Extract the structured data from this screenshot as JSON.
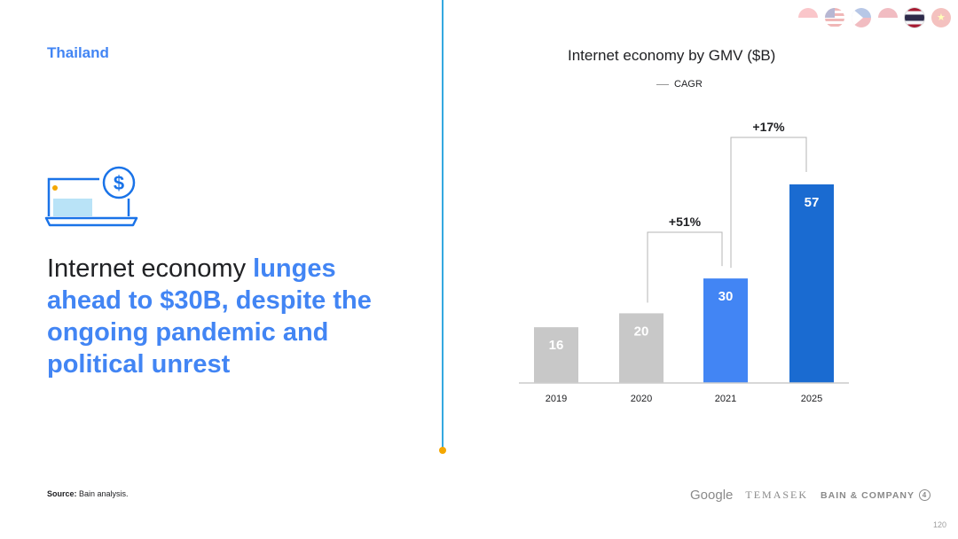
{
  "slide": {
    "country": "Thailand",
    "headline_plain": "Internet economy ",
    "headline_emph": "lunges ahead to $30B, despite the ongoing pandemic and political unrest",
    "source_label": "Source:",
    "source_text": "Bain analysis.",
    "page_number": "120",
    "icon": "laptop-dollar-icon"
  },
  "logos": {
    "google": "Google",
    "temasek": "TEMASEK",
    "bain": "BAIN & COMPANY"
  },
  "flags": [
    {
      "name": "singapore",
      "active": false
    },
    {
      "name": "malaysia",
      "active": false
    },
    {
      "name": "philippines",
      "active": false
    },
    {
      "name": "indonesia",
      "active": false
    },
    {
      "name": "thailand",
      "active": true
    },
    {
      "name": "vietnam",
      "active": false
    }
  ],
  "colors": {
    "accent": "#4285f4",
    "bar_gray": "#c8c8c8",
    "bar_blue": "#4285f4",
    "bar_dark_blue": "#1a6bd1",
    "divider": "#34a8e0",
    "dot": "#f4a700"
  },
  "chart_data": {
    "type": "bar",
    "title": "Internet economy by GMV ($B)",
    "legend": [
      {
        "label": "CAGR",
        "style": "line"
      }
    ],
    "categories": [
      "2019",
      "2020",
      "2021",
      "2025"
    ],
    "values": [
      16,
      20,
      30,
      57
    ],
    "bar_colors": [
      "#c8c8c8",
      "#c8c8c8",
      "#4285f4",
      "#1a6bd1"
    ],
    "annotations": [
      {
        "label": "+51%",
        "from": "2020",
        "to": "2021"
      },
      {
        "label": "+17%",
        "from": "2021",
        "to": "2025"
      }
    ],
    "ylim": [
      0,
      57
    ]
  }
}
